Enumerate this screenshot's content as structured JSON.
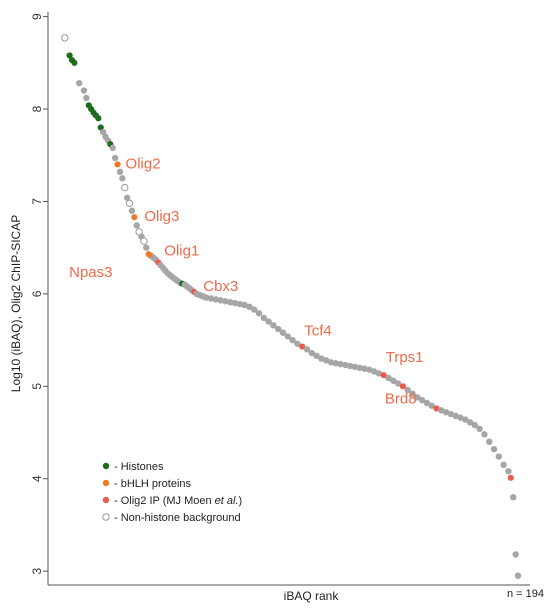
{
  "chart_data": {
    "type": "scatter",
    "title": "",
    "xlabel": "iBAQ rank",
    "ylabel": "Log10 (iBAQ), Olig2 ChIP-SICAP",
    "ylim": [
      2.85,
      9.05
    ],
    "yticks": [
      3,
      4,
      5,
      6,
      7,
      8,
      9
    ],
    "n_label": "n = 194",
    "grid": false,
    "legend_position": "bottom-left",
    "colors": {
      "histones": "#1e6b1e",
      "bhlh": "#ef7a2a",
      "olig2ip": "#ec5a4a",
      "background": "#a6a6a6"
    },
    "legend": [
      {
        "category": "histones",
        "prefix": "- ",
        "label": "Histones",
        "italic": ""
      },
      {
        "category": "bhlh",
        "prefix": "- ",
        "label": "bHLH proteins",
        "italic": ""
      },
      {
        "category": "olig2ip",
        "prefix": "- ",
        "label": "Olig2 IP (MJ Moen ",
        "italic": "et al.",
        "suffix": ")"
      },
      {
        "category": "background",
        "prefix": "- ",
        "label": "Non-histone background",
        "italic": ""
      }
    ],
    "points": [
      [
        1,
        8.77,
        "background"
      ],
      [
        3,
        8.58,
        "histones"
      ],
      [
        4,
        8.53,
        "histones"
      ],
      [
        5,
        8.5,
        "histones"
      ],
      [
        7,
        8.28,
        "background"
      ],
      [
        9,
        8.2,
        "background"
      ],
      [
        10,
        8.12,
        "background"
      ],
      [
        11,
        8.04,
        "histones"
      ],
      [
        12,
        8.0,
        "histones"
      ],
      [
        13,
        7.96,
        "histones"
      ],
      [
        14,
        7.93,
        "histones"
      ],
      [
        15,
        7.9,
        "histones"
      ],
      [
        16,
        7.8,
        "histones"
      ],
      [
        17,
        7.75,
        "background"
      ],
      [
        18,
        7.7,
        "background"
      ],
      [
        19,
        7.66,
        "background"
      ],
      [
        20,
        7.62,
        "histones"
      ],
      [
        21,
        7.58,
        "background"
      ],
      [
        22,
        7.47,
        "background"
      ],
      [
        23,
        7.4,
        "bhlh"
      ],
      [
        24,
        7.32,
        "background"
      ],
      [
        25,
        7.25,
        "background"
      ],
      [
        26,
        7.15,
        "background"
      ],
      [
        27,
        7.04,
        "background"
      ],
      [
        28,
        6.98,
        "background"
      ],
      [
        29,
        6.9,
        "background"
      ],
      [
        30,
        6.83,
        "bhlh"
      ],
      [
        31,
        6.74,
        "background"
      ],
      [
        32,
        6.67,
        "background"
      ],
      [
        33,
        6.62,
        "background"
      ],
      [
        34,
        6.57,
        "background"
      ],
      [
        35,
        6.5,
        "background"
      ],
      [
        36,
        6.43,
        "bhlh"
      ],
      [
        37,
        6.41,
        "bhlh"
      ],
      [
        38,
        6.39,
        "background"
      ],
      [
        39,
        6.37,
        "background"
      ],
      [
        40,
        6.34,
        "olig2ip"
      ],
      [
        41,
        6.31,
        "background"
      ],
      [
        42,
        6.28,
        "background"
      ],
      [
        43,
        6.25,
        "background"
      ],
      [
        44,
        6.22,
        "background"
      ],
      [
        45,
        6.2,
        "background"
      ],
      [
        46,
        6.18,
        "background"
      ],
      [
        47,
        6.16,
        "background"
      ],
      [
        48,
        6.14,
        "background"
      ],
      [
        49,
        6.12,
        "background"
      ],
      [
        50,
        6.11,
        "histones"
      ],
      [
        51,
        6.1,
        "background"
      ],
      [
        52,
        6.08,
        "background"
      ],
      [
        53,
        6.06,
        "background"
      ],
      [
        54,
        6.04,
        "background"
      ],
      [
        55,
        6.02,
        "olig2ip"
      ],
      [
        56,
        6.0,
        "background"
      ],
      [
        57,
        5.99,
        "background"
      ],
      [
        58,
        5.98,
        "background"
      ],
      [
        59,
        5.97,
        "background"
      ],
      [
        60,
        5.96,
        "background"
      ],
      [
        62,
        5.95,
        "background"
      ],
      [
        64,
        5.94,
        "background"
      ],
      [
        66,
        5.93,
        "background"
      ],
      [
        68,
        5.92,
        "background"
      ],
      [
        70,
        5.91,
        "background"
      ],
      [
        72,
        5.9,
        "background"
      ],
      [
        74,
        5.89,
        "background"
      ],
      [
        76,
        5.88,
        "background"
      ],
      [
        78,
        5.86,
        "background"
      ],
      [
        80,
        5.83,
        "background"
      ],
      [
        82,
        5.79,
        "background"
      ],
      [
        84,
        5.74,
        "background"
      ],
      [
        86,
        5.7,
        "background"
      ],
      [
        88,
        5.66,
        "background"
      ],
      [
        90,
        5.62,
        "background"
      ],
      [
        92,
        5.58,
        "background"
      ],
      [
        94,
        5.54,
        "background"
      ],
      [
        96,
        5.5,
        "background"
      ],
      [
        98,
        5.46,
        "background"
      ],
      [
        100,
        5.43,
        "olig2ip"
      ],
      [
        102,
        5.4,
        "background"
      ],
      [
        104,
        5.36,
        "background"
      ],
      [
        106,
        5.33,
        "background"
      ],
      [
        108,
        5.3,
        "background"
      ],
      [
        110,
        5.28,
        "background"
      ],
      [
        112,
        5.26,
        "background"
      ],
      [
        114,
        5.25,
        "background"
      ],
      [
        116,
        5.24,
        "background"
      ],
      [
        118,
        5.23,
        "background"
      ],
      [
        120,
        5.22,
        "background"
      ],
      [
        122,
        5.21,
        "background"
      ],
      [
        124,
        5.2,
        "background"
      ],
      [
        126,
        5.19,
        "background"
      ],
      [
        128,
        5.18,
        "background"
      ],
      [
        130,
        5.16,
        "background"
      ],
      [
        132,
        5.14,
        "background"
      ],
      [
        134,
        5.12,
        "olig2ip"
      ],
      [
        136,
        5.09,
        "background"
      ],
      [
        138,
        5.06,
        "background"
      ],
      [
        140,
        5.03,
        "background"
      ],
      [
        142,
        5.0,
        "olig2ip"
      ],
      [
        144,
        4.96,
        "background"
      ],
      [
        146,
        4.92,
        "background"
      ],
      [
        148,
        4.88,
        "background"
      ],
      [
        150,
        4.85,
        "background"
      ],
      [
        152,
        4.82,
        "background"
      ],
      [
        154,
        4.79,
        "background"
      ],
      [
        156,
        4.76,
        "olig2ip"
      ],
      [
        158,
        4.74,
        "background"
      ],
      [
        160,
        4.72,
        "background"
      ],
      [
        162,
        4.7,
        "background"
      ],
      [
        164,
        4.68,
        "background"
      ],
      [
        166,
        4.66,
        "background"
      ],
      [
        168,
        4.64,
        "background"
      ],
      [
        170,
        4.61,
        "background"
      ],
      [
        172,
        4.58,
        "background"
      ],
      [
        174,
        4.54,
        "background"
      ],
      [
        176,
        4.48,
        "background"
      ],
      [
        178,
        4.4,
        "background"
      ],
      [
        180,
        4.32,
        "background"
      ],
      [
        182,
        4.24,
        "background"
      ],
      [
        184,
        4.15,
        "background"
      ],
      [
        186,
        4.08,
        "background"
      ],
      [
        187,
        4.01,
        "olig2ip"
      ],
      [
        188,
        3.8,
        "background"
      ],
      [
        189,
        3.18,
        "background"
      ],
      [
        190,
        2.95,
        "background"
      ]
    ],
    "annotations": [
      {
        "label": "Olig2",
        "x": 23,
        "y": 7.4
      },
      {
        "label": "Olig3",
        "x": 30,
        "y": 6.83
      },
      {
        "label": "Olig1",
        "x": 40,
        "y": 6.34
      },
      {
        "label": "Npas3",
        "x": 37,
        "y": 6.41
      },
      {
        "label": "Cbx3",
        "x": 55,
        "y": 6.02
      },
      {
        "label": "Tcf4",
        "x": 100,
        "y": 5.43
      },
      {
        "label": "Trps1",
        "x": 134,
        "y": 5.12
      },
      {
        "label": "Brd8",
        "x": 142,
        "y": 5.0
      }
    ]
  }
}
